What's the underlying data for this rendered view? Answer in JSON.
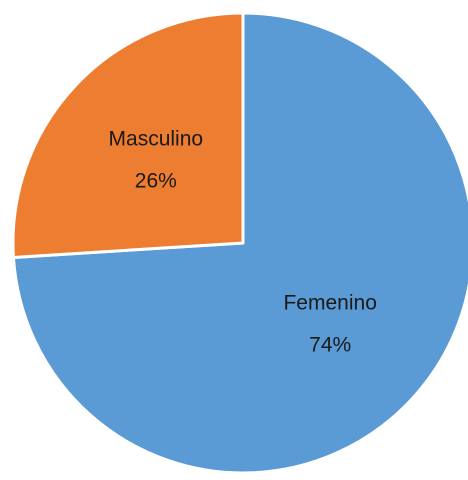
{
  "chart_data": {
    "type": "pie",
    "categories": [
      "Femenino",
      "Masculino"
    ],
    "values": [
      74,
      26
    ],
    "value_labels": [
      "74%",
      "26%"
    ],
    "colors": [
      "#5b9bd5",
      "#ed7d31"
    ]
  }
}
